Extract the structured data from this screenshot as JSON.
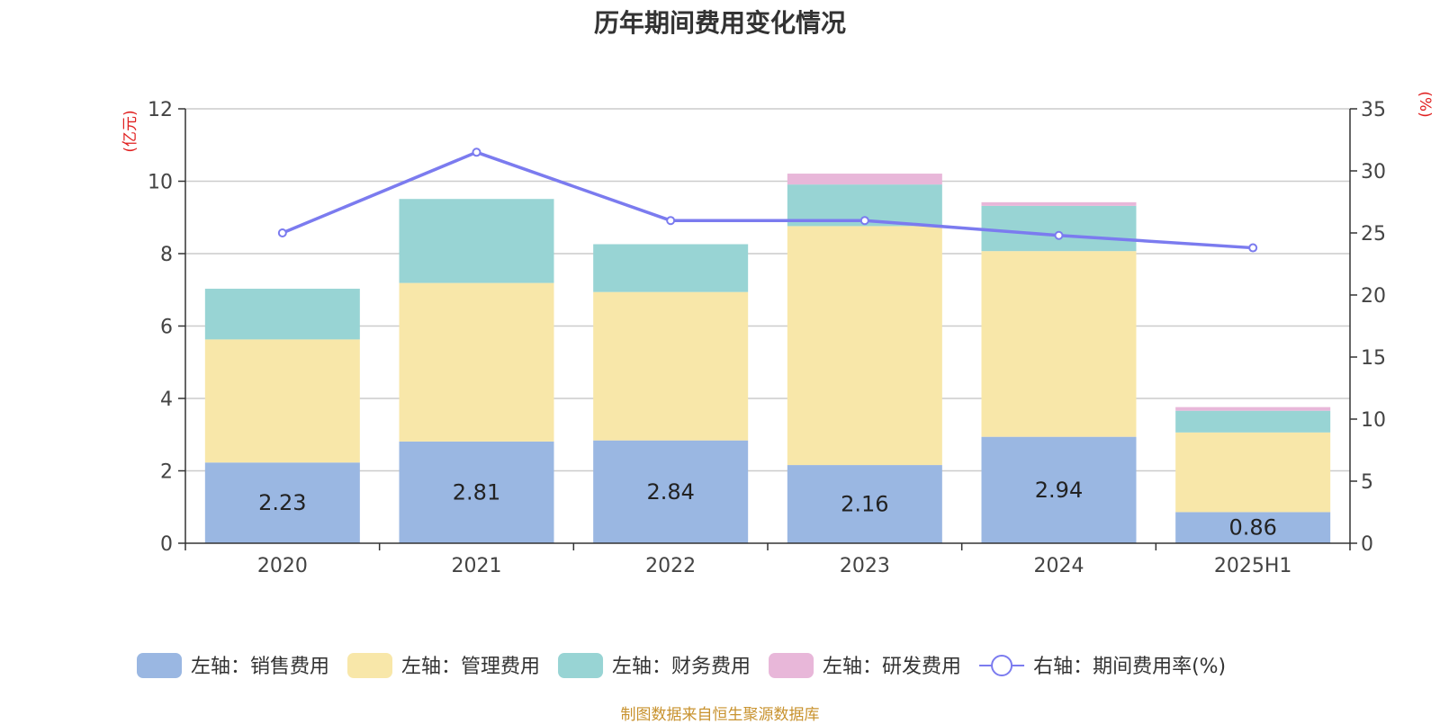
{
  "chart_data": {
    "type": "bar",
    "title": "历年期间费用变化情况",
    "categories": [
      "2020",
      "2021",
      "2022",
      "2023",
      "2024",
      "2025H1"
    ],
    "left_axis": {
      "unit_label": "(亿元)",
      "ylim": [
        0,
        12
      ],
      "ticks": [
        "0",
        "2",
        "4",
        "6",
        "8",
        "10",
        "12"
      ]
    },
    "right_axis": {
      "unit_label": "(%)",
      "ylim": [
        0,
        35
      ],
      "ticks": [
        "0",
        "5",
        "10",
        "15",
        "20",
        "25",
        "30",
        "35"
      ]
    },
    "grid": true,
    "legend_position": "bottom",
    "series": [
      {
        "name": "左轴：销售费用",
        "type": "bar",
        "stack": "left",
        "axis": "left",
        "color": "#9ab7e2",
        "values": [
          2.23,
          2.81,
          2.84,
          2.16,
          2.94,
          0.86
        ],
        "labels": [
          "2.23",
          "2.81",
          "2.84",
          "2.16",
          "2.94",
          "0.86"
        ]
      },
      {
        "name": "左轴：管理费用",
        "type": "bar",
        "stack": "left",
        "axis": "left",
        "color": "#f8e7a9",
        "values": [
          3.4,
          4.38,
          4.1,
          6.6,
          5.13,
          2.2
        ]
      },
      {
        "name": "左轴：财务费用",
        "type": "bar",
        "stack": "left",
        "axis": "left",
        "color": "#98d4d4",
        "values": [
          1.4,
          2.32,
          1.32,
          1.15,
          1.25,
          0.6
        ]
      },
      {
        "name": "左轴：研发费用",
        "type": "bar",
        "stack": "left",
        "axis": "left",
        "color": "#e8b7d9",
        "values": [
          0,
          0,
          0,
          0.3,
          0.1,
          0.1
        ]
      },
      {
        "name": "右轴：期间费用率(%)",
        "type": "line",
        "axis": "right",
        "color": "#7b7bef",
        "values": [
          25.0,
          31.5,
          26.0,
          26.0,
          24.8,
          23.8
        ]
      }
    ]
  },
  "footer": {
    "source": "制图数据来自恒生聚源数据库"
  }
}
